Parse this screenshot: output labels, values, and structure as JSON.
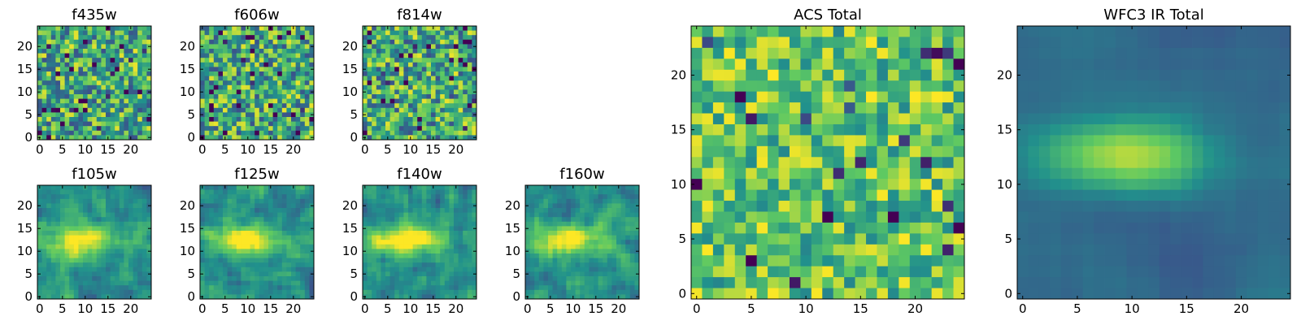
{
  "colormap": [
    "#440154",
    "#3b528b",
    "#21918c",
    "#5ec962",
    "#fde725"
  ],
  "chart_data": [
    {
      "type": "heatmap",
      "title": "f435w",
      "xlim": [
        0,
        25
      ],
      "ylim": [
        0,
        25
      ],
      "xticks": [
        0,
        5,
        10,
        15,
        20
      ],
      "yticks": [
        0,
        5,
        10,
        15,
        20
      ],
      "pattern": "noise",
      "seed": 11
    },
    {
      "type": "heatmap",
      "title": "f606w",
      "xlim": [
        0,
        25
      ],
      "ylim": [
        0,
        25
      ],
      "xticks": [
        0,
        5,
        10,
        15,
        20
      ],
      "yticks": [
        0,
        5,
        10,
        15,
        20
      ],
      "pattern": "noise",
      "seed": 23
    },
    {
      "type": "heatmap",
      "title": "f814w",
      "xlim": [
        0,
        25
      ],
      "ylim": [
        0,
        25
      ],
      "xticks": [
        0,
        5,
        10,
        15,
        20
      ],
      "yticks": [
        0,
        5,
        10,
        15,
        20
      ],
      "pattern": "noise",
      "seed": 37
    },
    {
      "type": "heatmap",
      "title": "f105w",
      "xlim": [
        0,
        25
      ],
      "ylim": [
        0,
        25
      ],
      "xticks": [
        0,
        5,
        10,
        15,
        20
      ],
      "yticks": [
        0,
        5,
        10,
        15,
        20
      ],
      "pattern": "blob",
      "seed": 41
    },
    {
      "type": "heatmap",
      "title": "f125w",
      "xlim": [
        0,
        25
      ],
      "ylim": [
        0,
        25
      ],
      "xticks": [
        0,
        5,
        10,
        15,
        20
      ],
      "yticks": [
        0,
        5,
        10,
        15,
        20
      ],
      "pattern": "blob",
      "seed": 53
    },
    {
      "type": "heatmap",
      "title": "f140w",
      "xlim": [
        0,
        25
      ],
      "ylim": [
        0,
        25
      ],
      "xticks": [
        0,
        5,
        10,
        15,
        20
      ],
      "yticks": [
        0,
        5,
        10,
        15,
        20
      ],
      "pattern": "blob",
      "seed": 67
    },
    {
      "type": "heatmap",
      "title": "f160w",
      "xlim": [
        0,
        25
      ],
      "ylim": [
        0,
        25
      ],
      "xticks": [
        0,
        5,
        10,
        15,
        20
      ],
      "yticks": [
        0,
        5,
        10,
        15,
        20
      ],
      "pattern": "blob",
      "seed": 79
    },
    {
      "type": "heatmap",
      "title": "ACS Total",
      "xlim": [
        0,
        25
      ],
      "ylim": [
        0,
        25
      ],
      "xticks": [
        0,
        5,
        10,
        15,
        20
      ],
      "yticks": [
        0,
        5,
        10,
        15,
        20
      ],
      "pattern": "noise-bright",
      "seed": 97
    },
    {
      "type": "heatmap",
      "title": "WFC3 IR Total",
      "xlim": [
        0,
        25
      ],
      "ylim": [
        0,
        25
      ],
      "xticks": [
        0,
        5,
        10,
        15,
        20
      ],
      "yticks": [
        0,
        5,
        10,
        15,
        20
      ],
      "pattern": "blob-smooth",
      "seed": 101
    }
  ]
}
